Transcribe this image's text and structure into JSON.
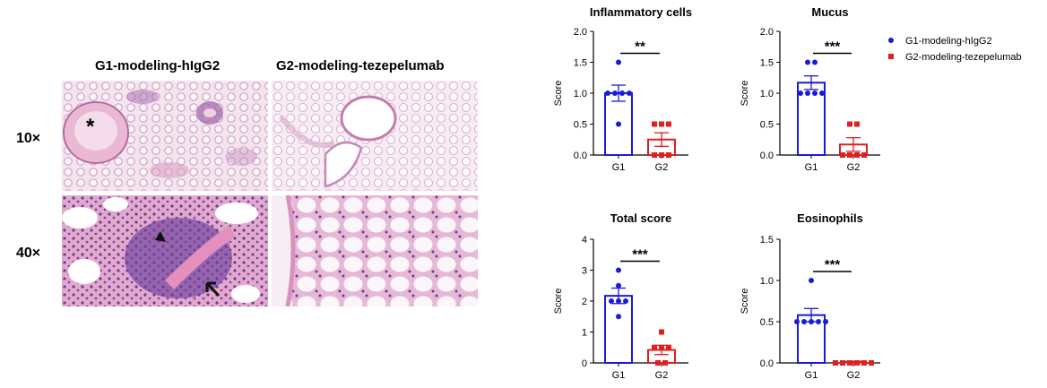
{
  "histology": {
    "col_titles": [
      "G1-modeling-hIgG2",
      "G2-modeling-tezepelumab"
    ],
    "row_labels": [
      "10×",
      "40×"
    ],
    "markers": {
      "asterisk": "*"
    }
  },
  "legend": [
    {
      "name": "G1-modeling-hIgG2",
      "color": "#1a1adb"
    },
    {
      "name": "G2-modeling-tezepelumab",
      "color": "#e01f1f"
    }
  ],
  "chart_data": [
    {
      "type": "bar",
      "title": "Inflammatory cells",
      "ylabel": "Score",
      "categories": [
        "G1",
        "G2"
      ],
      "ylim": [
        0,
        2.0
      ],
      "yticks": [
        "0.0",
        "0.5",
        "1.0",
        "1.5",
        "2.0"
      ],
      "yticks_values": [
        0,
        0.5,
        1.0,
        1.5,
        2.0
      ],
      "means": [
        1.0,
        0.25
      ],
      "sem": [
        0.13,
        0.11
      ],
      "points": [
        [
          1.5,
          1.0,
          1.0,
          1.0,
          1.0,
          0.5
        ],
        [
          0.5,
          0.5,
          0.5,
          0.0,
          0.0,
          0.0
        ]
      ],
      "significance": "**"
    },
    {
      "type": "bar",
      "title": "Mucus",
      "ylabel": "Score",
      "categories": [
        "G1",
        "G2"
      ],
      "ylim": [
        0,
        2.0
      ],
      "yticks": [
        "0.0",
        "0.5",
        "1.0",
        "1.5",
        "2.0"
      ],
      "yticks_values": [
        0,
        0.5,
        1.0,
        1.5,
        2.0
      ],
      "means": [
        1.17,
        0.17
      ],
      "sem": [
        0.11,
        0.11
      ],
      "points": [
        [
          1.5,
          1.5,
          1.0,
          1.0,
          1.0,
          1.0
        ],
        [
          0.5,
          0.5,
          0.0,
          0.0,
          0.0,
          0.0
        ]
      ],
      "significance": "***"
    },
    {
      "type": "bar",
      "title": "Total score",
      "ylabel": "Score",
      "categories": [
        "G1",
        "G2"
      ],
      "ylim": [
        0,
        4
      ],
      "yticks": [
        "0",
        "1",
        "2",
        "3",
        "4"
      ],
      "yticks_values": [
        0,
        1,
        2,
        3,
        4
      ],
      "means": [
        2.17,
        0.42
      ],
      "sem": [
        0.25,
        0.15
      ],
      "points": [
        [
          3.0,
          2.5,
          2.0,
          2.0,
          2.0,
          1.5
        ],
        [
          1.0,
          0.5,
          0.5,
          0.5,
          0.0,
          0.0
        ]
      ],
      "significance": "***"
    },
    {
      "type": "bar",
      "title": "Eosinophils",
      "ylabel": "Score",
      "categories": [
        "G1",
        "G2"
      ],
      "ylim": [
        0,
        1.5
      ],
      "yticks": [
        "0.0",
        "0.5",
        "1.0",
        "1.5"
      ],
      "yticks_values": [
        0,
        0.5,
        1.0,
        1.5
      ],
      "means": [
        0.58,
        0.0
      ],
      "sem": [
        0.08,
        0.0
      ],
      "points": [
        [
          1.0,
          0.5,
          0.5,
          0.5,
          0.5,
          0.5
        ],
        [
          0.0,
          0.0,
          0.0,
          0.0,
          0.0,
          0.0
        ]
      ],
      "significance": "***"
    }
  ]
}
